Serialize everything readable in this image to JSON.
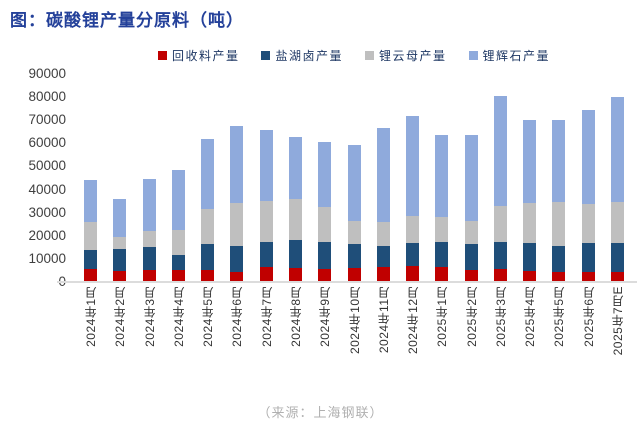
{
  "title": "图：碳酸锂产量分原料（吨）",
  "source": "（来源：上海钢联）",
  "colors": {
    "title_text": "#24419A",
    "legend_text": "#1F3864",
    "axis_text": "#3F3F3F",
    "xaxis_text": "#333333",
    "axis_line": "#DCDCDC",
    "recycled": "#C00000",
    "salt_lake": "#1F4E79",
    "mica": "#BFBFBF",
    "spodumene": "#8FAADC",
    "source_text": "#B0B0B0"
  },
  "chart_data": {
    "type": "bar",
    "stacked": true,
    "title": "图：碳酸锂产量分原料（吨）",
    "legend_position": "top",
    "grid": false,
    "ylim": [
      0,
      90000
    ],
    "ytick_step": 10000,
    "categories": [
      "2024年1月",
      "2024年2月",
      "2024年3月",
      "2024年4月",
      "2024年5月",
      "2024年6月",
      "2024年7月",
      "2024年8月",
      "2024年9月",
      "2024年10月",
      "2024年11月",
      "2024年12月",
      "2025年1月",
      "2025年2月",
      "2025年3月",
      "2025年4月",
      "2025年5月",
      "2025年6月",
      "2025年7月E"
    ],
    "series": [
      {
        "name": "回收料产量",
        "color": "#C00000",
        "values": [
          5500,
          4800,
          5000,
          5300,
          5300,
          4500,
          6300,
          6000,
          5700,
          6000,
          6300,
          7000,
          6300,
          5300,
          5700,
          4900,
          4200,
          4200,
          4500
        ]
      },
      {
        "name": "盐湖卤产量",
        "color": "#1F4E79",
        "values": [
          8500,
          9300,
          10000,
          6500,
          11000,
          11300,
          11200,
          12200,
          11400,
          10400,
          9400,
          9800,
          10900,
          11100,
          11800,
          11900,
          11500,
          12600,
          12300
        ]
      },
      {
        "name": "锂云母产量",
        "color": "#BFBFBF",
        "values": [
          12000,
          5400,
          7000,
          10700,
          15400,
          18500,
          17500,
          17800,
          15400,
          9900,
          10200,
          11700,
          10800,
          9900,
          15600,
          17500,
          19000,
          17000,
          17900
        ]
      },
      {
        "name": "锂辉石产量",
        "color": "#8FAADC",
        "values": [
          18000,
          16500,
          22400,
          26000,
          30400,
          33100,
          31000,
          26800,
          28100,
          32900,
          40800,
          43300,
          35800,
          37500,
          47600,
          35700,
          35600,
          40800,
          45300
        ]
      }
    ],
    "totals": [
      44000,
      36000,
      44400,
      48500,
      62100,
      67400,
      66000,
      62800,
      60600,
      59200,
      66700,
      71800,
      63800,
      63800,
      80700,
      70000,
      70300,
      74600,
      80000
    ]
  }
}
